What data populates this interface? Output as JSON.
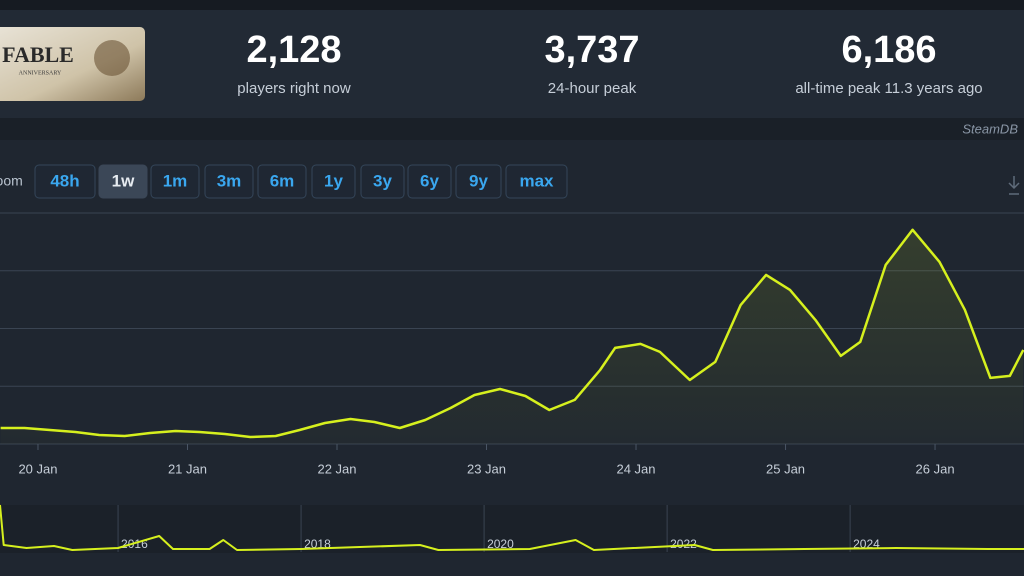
{
  "header": {
    "game_logo": {
      "title": "FABLE",
      "subtitle": "ANNIVERSARY"
    },
    "stats": [
      {
        "value": "2,128",
        "label": "players right now"
      },
      {
        "value": "3,737",
        "label": "24-hour peak"
      },
      {
        "value": "6,186",
        "label": "all-time peak 11.3 years ago"
      }
    ],
    "brand": "SteamDB"
  },
  "toolbar": {
    "label": "Zoom",
    "buttons": [
      "48h",
      "1w",
      "1m",
      "3m",
      "6m",
      "1y",
      "3y",
      "6y",
      "9y",
      "max"
    ],
    "active": "1w"
  },
  "chart_data": [
    {
      "type": "line",
      "color": "#d6f01e",
      "grid": true,
      "x": [
        19.75,
        19.91,
        20.08,
        20.25,
        20.41,
        20.58,
        20.75,
        20.92,
        21.08,
        21.25,
        21.42,
        21.59,
        21.75,
        21.92,
        22.09,
        22.25,
        22.42,
        22.59,
        22.76,
        22.92,
        23.09,
        23.26,
        23.42,
        23.59,
        23.76,
        23.86,
        24.03,
        24.16,
        24.36,
        24.53,
        24.7,
        24.87,
        25.03,
        25.2,
        25.37,
        25.5,
        25.67,
        25.85,
        26.03,
        26.2,
        26.37,
        26.5,
        26.59
      ],
      "values": [
        277,
        277,
        243,
        208,
        156,
        139,
        191,
        225,
        208,
        173,
        121,
        139,
        243,
        364,
        433,
        381,
        277,
        416,
        624,
        849,
        953,
        832,
        589,
        763,
        1282,
        1664,
        1733,
        1594,
        1109,
        1421,
        2409,
        2929,
        2669,
        2149,
        1525,
        1768,
        3102,
        3709,
        3154,
        2322,
        1144,
        1179,
        1629
      ],
      "xlim": [
        19.746,
        26.595
      ],
      "xticks": [
        {
          "value": 20,
          "label": "20 Jan"
        },
        {
          "value": 21,
          "label": "21 Jan"
        },
        {
          "value": 22,
          "label": "22 Jan"
        },
        {
          "value": 23,
          "label": "23 Jan"
        },
        {
          "value": 24,
          "label": "24 Jan"
        },
        {
          "value": 25,
          "label": "25 Jan"
        },
        {
          "value": 26,
          "label": "26 Jan"
        }
      ],
      "ylim": [
        0,
        4000
      ],
      "yticks": [
        0,
        1000,
        2000,
        3000,
        4000
      ]
    },
    {
      "type": "line",
      "color": "#d6f01e",
      "x": [
        2014.71,
        2014.75,
        2015.0,
        2015.3,
        2015.5,
        2016.0,
        2016.45,
        2016.6,
        2017.0,
        2017.15,
        2017.3,
        2018.0,
        2019.3,
        2019.5,
        2020.5,
        2021.0,
        2021.2,
        2022.3,
        2022.5,
        2023.5,
        2024.5,
        2025.5,
        2025.9
      ],
      "values": [
        6186,
        921,
        526,
        790,
        263,
        526,
        2106,
        395,
        395,
        1579,
        263,
        395,
        921,
        263,
        395,
        1579,
        263,
        921,
        263,
        395,
        526,
        395,
        395
      ],
      "xlim": [
        2014.71,
        2025.9
      ],
      "xticks": [
        2016,
        2018,
        2020,
        2022,
        2024
      ],
      "ylim": [
        0,
        6186
      ]
    }
  ]
}
